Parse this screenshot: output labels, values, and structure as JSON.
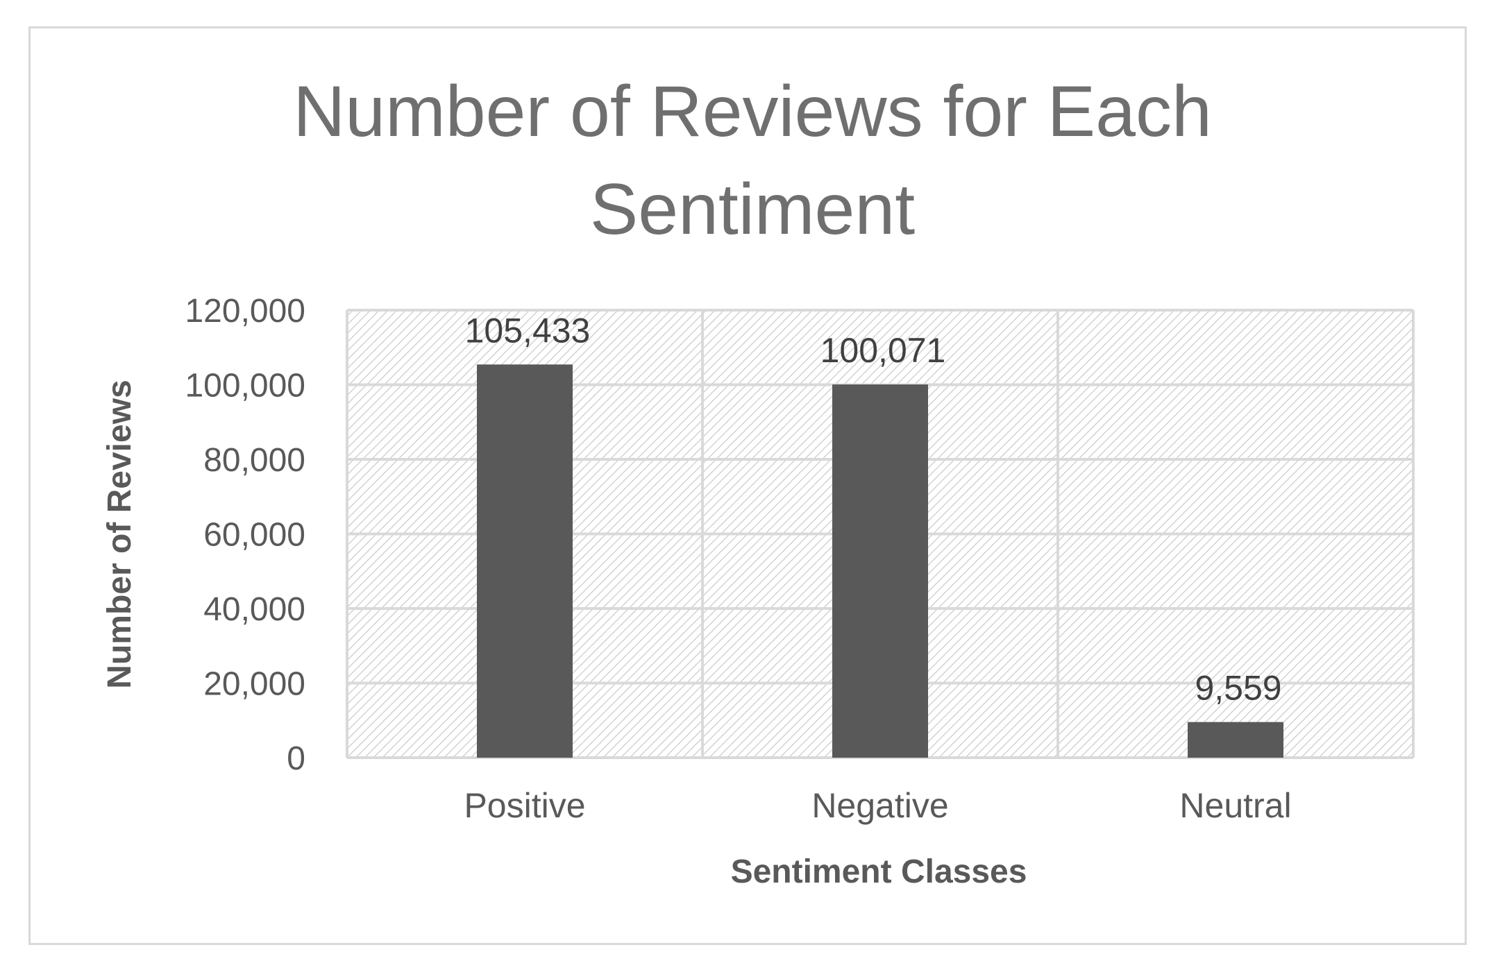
{
  "chart_data": {
    "type": "bar",
    "title_lines": [
      "Number of Reviews for Each",
      "Sentiment"
    ],
    "xlabel": "Sentiment Classes",
    "ylabel": "Number of Reviews",
    "categories": [
      "Positive",
      "Negative",
      "Neutral"
    ],
    "values": [
      105433,
      100071,
      9559
    ],
    "value_labels": [
      "105,433",
      "100,071",
      "9,559"
    ],
    "ylim": [
      0,
      120000
    ],
    "yticks": [
      0,
      20000,
      40000,
      60000,
      80000,
      100000,
      120000
    ],
    "ytick_labels": [
      "0",
      "20,000",
      "40,000",
      "60,000",
      "80,000",
      "100,000",
      "120,000"
    ],
    "grid": true,
    "legend": "none",
    "colors": {
      "bar": "#595959",
      "grid": "#d9d9d9",
      "hatch": "#bfbfbf",
      "title": "#6f6f6f"
    }
  }
}
